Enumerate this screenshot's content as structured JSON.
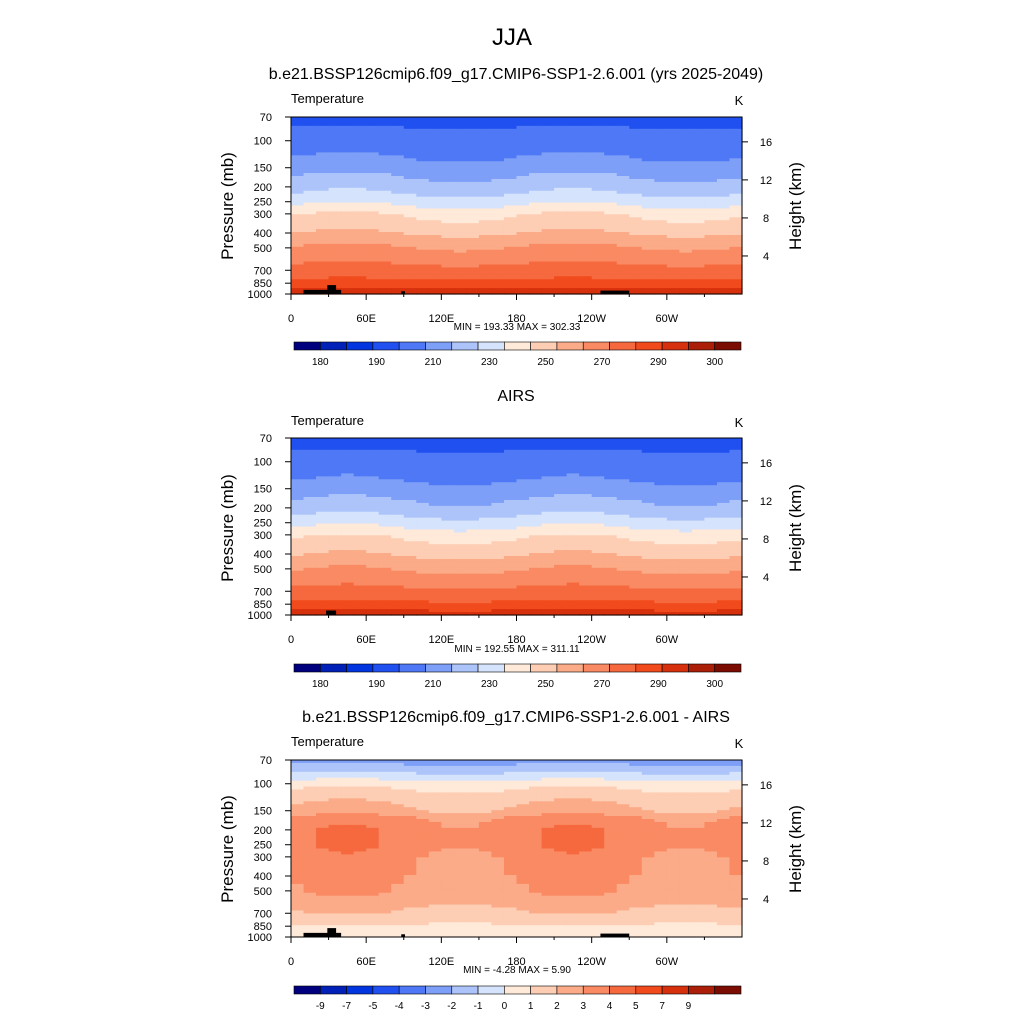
{
  "figure": {
    "main_title": "JJA"
  },
  "palettes": {
    "temperature": [
      "#00007f",
      "#0020b8",
      "#0035e0",
      "#2050f0",
      "#4e78f5",
      "#7e9ff7",
      "#acc4fa",
      "#d5e3fc",
      "#ffe9d9",
      "#fdcdb4",
      "#fbab88",
      "#f98a63",
      "#f6693f",
      "#f14a1c",
      "#d7300d",
      "#ab1e07",
      "#7a0c02"
    ],
    "difference": [
      "#00007f",
      "#0020b8",
      "#0035e0",
      "#2050f0",
      "#4e78f5",
      "#7e9ff7",
      "#acc4fa",
      "#d5e3fc",
      "#ffe9d9",
      "#fdcdb4",
      "#fbab88",
      "#f98a63",
      "#f6693f",
      "#f14a1c",
      "#d7300d",
      "#ab1e07",
      "#7a0c02"
    ],
    "topography": "#000000"
  },
  "chart_data": [
    {
      "type": "heatmap",
      "title": "b.e21.BSSP126cmip6.f09_g17.CMIP6-SSP1-2.6.001 (yrs 2025-2049)",
      "left_label": "Temperature",
      "right_label": "K",
      "ylabel": "Pressure (mb)",
      "y2label": "Height (km)",
      "x_ticks": [
        "0",
        "60E",
        "120E",
        "180",
        "120W",
        "60W"
      ],
      "x_tick_lon": [
        0,
        60,
        120,
        180,
        240,
        300
      ],
      "xlim": [
        0,
        360
      ],
      "y_ticks": [
        70,
        100,
        150,
        200,
        250,
        300,
        400,
        500,
        700,
        850,
        1000
      ],
      "y2_ticks": [
        4,
        8,
        12,
        16
      ],
      "ylim": [
        70,
        1000
      ],
      "stats": "MIN = 193.33  MAX = 302.33",
      "colorbar_labels": [
        "180",
        "190",
        "210",
        "230",
        "250",
        "270",
        "290",
        "300"
      ],
      "profile": {
        "p": [
          70,
          85,
          100,
          130,
          150,
          175,
          200,
          225,
          250,
          275,
          300,
          350,
          400,
          450,
          500,
          600,
          700,
          800,
          850,
          925,
          1000
        ],
        "v": [
          197,
          202,
          205,
          210,
          214,
          219,
          223,
          228,
          233,
          238,
          243,
          248,
          253,
          258,
          262,
          268,
          274,
          279,
          283,
          288,
          294
        ]
      },
      "zonal_amp": 3,
      "topography": [
        [
          10,
          40,
          940
        ],
        [
          29,
          36,
          875
        ],
        [
          88,
          91,
          960
        ],
        [
          247,
          270,
          950
        ]
      ]
    },
    {
      "type": "heatmap",
      "title": "AIRS",
      "left_label": "Temperature",
      "right_label": "K",
      "ylabel": "Pressure (mb)",
      "y2label": "Height (km)",
      "x_ticks": [
        "0",
        "60E",
        "120E",
        "180",
        "120W",
        "60W"
      ],
      "x_tick_lon": [
        0,
        60,
        120,
        180,
        240,
        300
      ],
      "xlim": [
        0,
        360
      ],
      "y_ticks": [
        70,
        100,
        150,
        200,
        250,
        300,
        400,
        500,
        700,
        850,
        1000
      ],
      "y2_ticks": [
        4,
        8,
        12,
        16
      ],
      "ylim": [
        70,
        1000
      ],
      "stats": "MIN = 192.55  MAX = 311.11",
      "colorbar_labels": [
        "180",
        "190",
        "210",
        "230",
        "250",
        "270",
        "290",
        "300"
      ],
      "profile": {
        "p": [
          70,
          85,
          100,
          130,
          150,
          175,
          200,
          225,
          250,
          275,
          300,
          350,
          400,
          450,
          500,
          600,
          700,
          800,
          850,
          925,
          1000
        ],
        "v": [
          196,
          201,
          205,
          209,
          213,
          218,
          222,
          227,
          232,
          237,
          242,
          247,
          252,
          257,
          261,
          267,
          273,
          278,
          282,
          287,
          293
        ]
      },
      "zonal_amp": 3,
      "topography": [
        [
          28,
          36,
          935
        ]
      ]
    },
    {
      "type": "heatmap",
      "title": "b.e21.BSSP126cmip6.f09_g17.CMIP6-SSP1-2.6.001 - AIRS",
      "left_label": "Temperature",
      "right_label": "K",
      "ylabel": "Pressure (mb)",
      "y2label": "Height (km)",
      "x_ticks": [
        "0",
        "60E",
        "120E",
        "180",
        "120W",
        "60W"
      ],
      "x_tick_lon": [
        0,
        60,
        120,
        180,
        240,
        300
      ],
      "xlim": [
        0,
        360
      ],
      "y_ticks": [
        70,
        100,
        150,
        200,
        250,
        300,
        400,
        500,
        700,
        850,
        1000
      ],
      "y2_ticks": [
        4,
        8,
        12,
        16
      ],
      "ylim": [
        70,
        1000
      ],
      "stats": "MIN = -4.28  MAX =   5.90",
      "colorbar_labels": [
        "-9",
        "-7",
        "-5",
        "-4",
        "-3",
        "-2",
        "-1",
        "0",
        "1",
        "2",
        "3",
        "4",
        "5",
        "7",
        "9"
      ],
      "profile": {
        "p": [
          70,
          80,
          90,
          100,
          120,
          150,
          170,
          200,
          250,
          300,
          400,
          500,
          600,
          700,
          800,
          850,
          925,
          1000
        ],
        "v": [
          -2.5,
          -1.5,
          -0.5,
          0.6,
          1.5,
          2.2,
          3.3,
          3.6,
          3.7,
          3.3,
          3.1,
          2.8,
          2.4,
          1.8,
          1.2,
          0.9,
          0.6,
          0.4
        ]
      },
      "zonal_amp": 0.6,
      "topography": [
        [
          10,
          40,
          940
        ],
        [
          29,
          36,
          875
        ],
        [
          88,
          91,
          960
        ],
        [
          247,
          270,
          950
        ]
      ]
    }
  ]
}
